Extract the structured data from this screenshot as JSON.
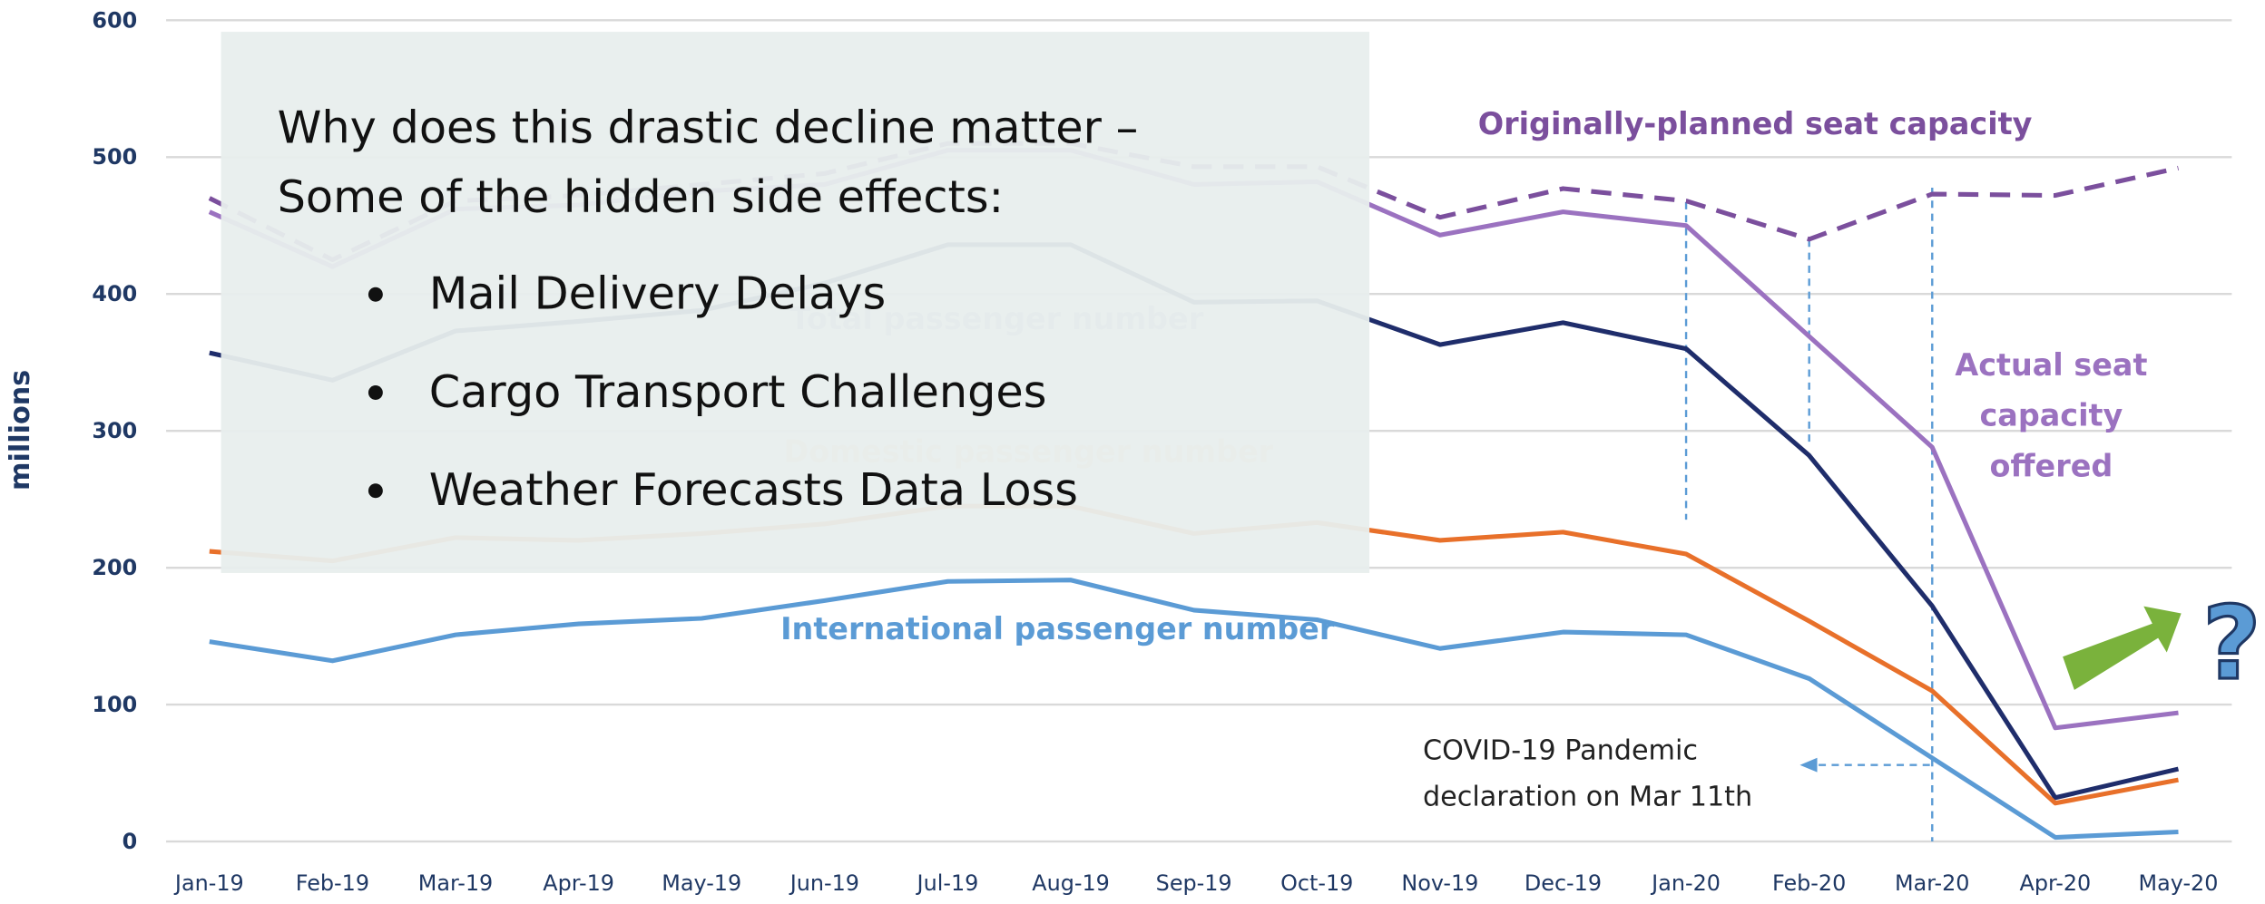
{
  "chart_data": {
    "type": "line",
    "y_label": "millions",
    "categories": [
      "Jan-19",
      "Feb-19",
      "Mar-19",
      "Apr-19",
      "May-19",
      "Jun-19",
      "Jul-19",
      "Aug-19",
      "Sep-19",
      "Oct-19",
      "Nov-19",
      "Dec-19",
      "Jan-20",
      "Feb-20",
      "Mar-20",
      "Apr-20",
      "May-20"
    ],
    "ylim": [
      0,
      600
    ],
    "yticks": [
      0,
      100,
      200,
      300,
      400,
      500,
      600
    ],
    "grid": true,
    "series": [
      {
        "name": "Originally-planned seat capacity",
        "color": "#7b4f9d",
        "dashed": true,
        "values": [
          470,
          425,
          468,
          472,
          480,
          488,
          510,
          510,
          493,
          493,
          456,
          477,
          468,
          440,
          473,
          472,
          492
        ]
      },
      {
        "label_lines": [
          "Actual seat",
          "capacity",
          "offered"
        ],
        "color": "#9b72c0",
        "values": [
          460,
          420,
          462,
          465,
          475,
          480,
          505,
          505,
          480,
          482,
          443,
          460,
          450,
          369,
          288,
          83,
          94
        ]
      },
      {
        "name": "Total passenger number",
        "color": "#1f2d6b",
        "values": [
          357,
          337,
          373,
          380,
          388,
          408,
          436,
          436,
          394,
          395,
          363,
          379,
          360,
          282,
          172,
          32,
          53
        ]
      },
      {
        "name": "Domestic passenger number",
        "color": "#e8702a",
        "values": [
          212,
          205,
          222,
          220,
          225,
          232,
          245,
          245,
          225,
          233,
          220,
          226,
          210,
          161,
          110,
          28,
          45
        ]
      },
      {
        "name": "International passenger number",
        "color": "#5b9bd5",
        "values": [
          146,
          132,
          151,
          159,
          163,
          176,
          190,
          191,
          169,
          162,
          141,
          153,
          151,
          119,
          61,
          3,
          7
        ]
      }
    ],
    "annotations": [
      "COVID-19 Pandemic",
      "declaration on Mar 11th"
    ],
    "question_mark": "?"
  },
  "overlay": {
    "heading": [
      "Why does this drastic decline matter –",
      "Some of the hidden side effects:"
    ],
    "bullets": [
      "Mail Delivery Delays",
      "Cargo Transport Challenges",
      "Weather Forecasts Data Loss"
    ]
  }
}
